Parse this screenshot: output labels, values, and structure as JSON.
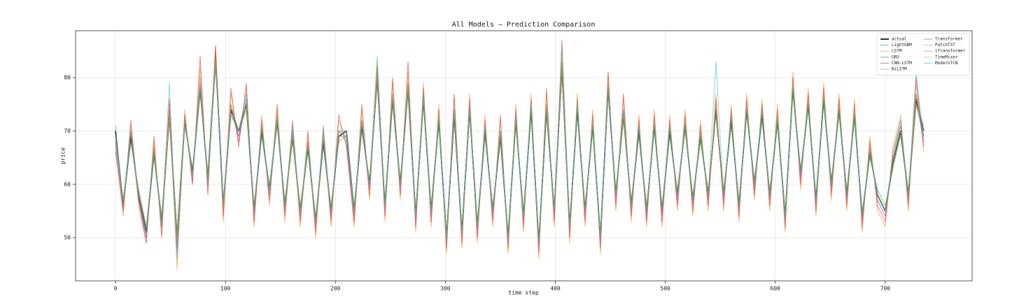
{
  "chart_data": {
    "type": "line",
    "title": "All Models — Prediction Comparison",
    "x_label": "time step",
    "y_label": "price",
    "x": [
      0,
      7,
      14,
      21,
      28,
      35,
      42,
      49,
      56,
      63,
      70,
      77,
      84,
      91,
      98,
      105,
      112,
      119,
      126,
      133,
      140,
      147,
      154,
      161,
      168,
      175,
      182,
      189,
      196,
      203,
      210,
      217,
      224,
      231,
      238,
      245,
      252,
      259,
      266,
      273,
      280,
      287,
      294,
      301,
      308,
      315,
      322,
      329,
      336,
      343,
      350,
      357,
      364,
      371,
      378,
      385,
      392,
      399,
      406,
      413,
      420,
      427,
      434,
      441,
      448,
      455,
      462,
      469,
      476,
      483,
      490,
      497,
      504,
      511,
      518,
      525,
      532,
      539,
      546,
      553,
      560,
      567,
      574,
      581,
      588,
      595,
      602,
      609,
      616,
      623,
      630,
      637,
      644,
      651,
      658,
      665,
      672,
      679,
      686,
      693,
      700,
      707,
      714,
      721,
      728,
      735
    ],
    "xlim": [
      -36.3,
      779
    ],
    "xticks": [
      0,
      100,
      200,
      300,
      400,
      500,
      600,
      700
    ],
    "ylim": [
      41.9,
      88.8
    ],
    "yticks": [
      50,
      60,
      70,
      80
    ],
    "grid": true,
    "legend": "upper right",
    "alpha": 0.6,
    "series": [
      {
        "name": "actual",
        "color": "#000000",
        "values": [
          70,
          56,
          69,
          58,
          51,
          66,
          53,
          73,
          50,
          72,
          62,
          78,
          61,
          84,
          56,
          74,
          70,
          75,
          55,
          70,
          59,
          72,
          56,
          69,
          55,
          67,
          53,
          68,
          55,
          69,
          70,
          55,
          71,
          60,
          80,
          56,
          76,
          60,
          78,
          54,
          76,
          55,
          72,
          50,
          73,
          51,
          74,
          52,
          70,
          55,
          69,
          50,
          72,
          54,
          74,
          49,
          74,
          55,
          82,
          52,
          74,
          55,
          71,
          50,
          78,
          58,
          73,
          56,
          70,
          55,
          71,
          55,
          70,
          58,
          71,
          57,
          69,
          58,
          74,
          58,
          72,
          56,
          74,
          60,
          73,
          58,
          72,
          54,
          78,
          62,
          75,
          57,
          76,
          60,
          74,
          58,
          73,
          54,
          66,
          58,
          55,
          64,
          70,
          58,
          76,
          70
        ]
      },
      {
        "name": "LightGBM",
        "color": "#1f77b4",
        "values": [
          71,
          55,
          70,
          57,
          50,
          67,
          52,
          74,
          49,
          73,
          61,
          79,
          60,
          85,
          55,
          75,
          69,
          76,
          54,
          71,
          58,
          73,
          55,
          70,
          54,
          68,
          52,
          69,
          54,
          70,
          69,
          54,
          72,
          59,
          81,
          55,
          77,
          59,
          79,
          53,
          77,
          54,
          73,
          49,
          74,
          50,
          75,
          51,
          71,
          54,
          70,
          49,
          73,
          53,
          75,
          48,
          75,
          54,
          83,
          51,
          75,
          54,
          72,
          49,
          79,
          57,
          74,
          55,
          71,
          54,
          72,
          54,
          71,
          57,
          72,
          56,
          70,
          57,
          75,
          57,
          73,
          55,
          75,
          59,
          74,
          57,
          73,
          53,
          79,
          61,
          76,
          56,
          77,
          59,
          75,
          57,
          74,
          53,
          67,
          57,
          54,
          65,
          71,
          57,
          77,
          69
        ]
      },
      {
        "name": "LSTM",
        "color": "#ff7f0e",
        "values": [
          68,
          54,
          71,
          56,
          49,
          68,
          51,
          75,
          44,
          74,
          60,
          82,
          59,
          86,
          53,
          77,
          68,
          78,
          52,
          73,
          56,
          74,
          53,
          71,
          52,
          69,
          50,
          70,
          52,
          72,
          68,
          52,
          74,
          57,
          83,
          53,
          79,
          57,
          81,
          51,
          79,
          52,
          75,
          47,
          76,
          48,
          77,
          49,
          73,
          52,
          72,
          47,
          75,
          51,
          77,
          46,
          77,
          52,
          85,
          49,
          77,
          52,
          74,
          47,
          81,
          55,
          76,
          53,
          73,
          52,
          74,
          52,
          73,
          55,
          74,
          54,
          72,
          55,
          77,
          55,
          75,
          53,
          77,
          57,
          76,
          55,
          75,
          51,
          81,
          59,
          78,
          54,
          79,
          57,
          77,
          55,
          76,
          51,
          69,
          55,
          52,
          67,
          73,
          55,
          79,
          66
        ]
      },
      {
        "name": "GRU",
        "color": "#2ca02c",
        "values": [
          69,
          57,
          68,
          59,
          52,
          65,
          54,
          72,
          51,
          71,
          63,
          77,
          62,
          83,
          57,
          73,
          70,
          74,
          56,
          69,
          60,
          71,
          57,
          68,
          56,
          66,
          54,
          67,
          56,
          68,
          69,
          56,
          70,
          61,
          79,
          57,
          75,
          61,
          77,
          55,
          75,
          56,
          71,
          51,
          72,
          52,
          73,
          53,
          69,
          56,
          68,
          51,
          71,
          55,
          73,
          50,
          73,
          56,
          81,
          53,
          73,
          56,
          70,
          51,
          77,
          59,
          72,
          57,
          69,
          56,
          70,
          56,
          69,
          59,
          70,
          58,
          68,
          59,
          73,
          59,
          71,
          57,
          73,
          61,
          72,
          59,
          71,
          55,
          77,
          63,
          74,
          58,
          75,
          61,
          73,
          59,
          72,
          55,
          65,
          59,
          56,
          63,
          69,
          59,
          75,
          71
        ]
      },
      {
        "name": "CNN-LSTM",
        "color": "#d62728",
        "values": [
          66,
          55,
          72,
          57,
          49,
          69,
          50,
          76,
          48,
          73,
          60,
          84,
          58,
          86,
          54,
          78,
          67,
          79,
          53,
          72,
          57,
          75,
          54,
          72,
          53,
          70,
          51,
          71,
          53,
          73,
          67,
          53,
          75,
          58,
          82,
          54,
          80,
          58,
          83,
          52,
          78,
          53,
          74,
          48,
          77,
          49,
          76,
          50,
          72,
          53,
          73,
          48,
          74,
          52,
          76,
          47,
          78,
          53,
          87,
          50,
          76,
          53,
          73,
          48,
          81,
          56,
          77,
          54,
          72,
          53,
          73,
          53,
          72,
          56,
          73,
          55,
          71,
          56,
          76,
          56,
          74,
          54,
          76,
          58,
          75,
          56,
          74,
          52,
          80,
          60,
          77,
          55,
          78,
          58,
          76,
          56,
          75,
          52,
          68,
          56,
          53,
          66,
          72,
          56,
          80,
          67
        ]
      },
      {
        "name": "BiLSTM",
        "color": "#9467bd",
        "values": [
          67,
          56,
          70,
          57,
          50,
          67,
          52,
          74,
          47,
          72,
          61,
          80,
          60,
          84,
          55,
          75,
          68,
          76,
          54,
          71,
          58,
          72,
          55,
          70,
          54,
          68,
          52,
          69,
          54,
          70,
          68,
          54,
          72,
          59,
          80,
          55,
          77,
          59,
          79,
          53,
          77,
          54,
          73,
          49,
          74,
          50,
          75,
          51,
          71,
          54,
          70,
          49,
          73,
          53,
          75,
          48,
          75,
          54,
          82,
          51,
          75,
          54,
          72,
          49,
          78,
          57,
          74,
          55,
          71,
          54,
          72,
          54,
          71,
          57,
          72,
          56,
          70,
          57,
          75,
          57,
          73,
          55,
          75,
          59,
          74,
          57,
          73,
          53,
          79,
          61,
          76,
          56,
          77,
          59,
          75,
          57,
          74,
          53,
          67,
          57,
          54,
          65,
          71,
          57,
          77,
          68
        ]
      },
      {
        "name": "Transformer",
        "color": "#8c564b",
        "values": [
          68,
          57,
          69,
          58,
          52,
          66,
          53,
          72,
          50,
          71,
          63,
          77,
          62,
          82,
          57,
          74,
          69,
          75,
          56,
          70,
          59,
          72,
          56,
          69,
          55,
          67,
          53,
          68,
          55,
          69,
          69,
          55,
          71,
          60,
          79,
          56,
          76,
          60,
          78,
          54,
          76,
          55,
          72,
          50,
          73,
          51,
          74,
          52,
          70,
          55,
          69,
          50,
          72,
          54,
          74,
          49,
          74,
          55,
          81,
          52,
          74,
          55,
          71,
          50,
          78,
          58,
          73,
          56,
          70,
          55,
          71,
          55,
          70,
          58,
          71,
          57,
          69,
          58,
          74,
          58,
          72,
          56,
          74,
          60,
          73,
          58,
          72,
          54,
          78,
          62,
          75,
          57,
          76,
          60,
          74,
          58,
          73,
          54,
          66,
          58,
          55,
          64,
          70,
          58,
          75,
          69
        ]
      },
      {
        "name": "PatchTST",
        "color": "#e377c2",
        "values": [
          69,
          55,
          70,
          57,
          51,
          67,
          52,
          74,
          49,
          73,
          61,
          79,
          60,
          83,
          55,
          75,
          69,
          76,
          54,
          71,
          58,
          73,
          55,
          70,
          54,
          68,
          52,
          69,
          54,
          70,
          70,
          54,
          72,
          59,
          80,
          55,
          77,
          59,
          79,
          53,
          77,
          54,
          73,
          49,
          74,
          50,
          75,
          51,
          71,
          54,
          70,
          49,
          73,
          53,
          75,
          48,
          75,
          54,
          82,
          51,
          75,
          54,
          72,
          49,
          79,
          57,
          74,
          55,
          71,
          54,
          72,
          54,
          71,
          57,
          72,
          56,
          70,
          57,
          75,
          57,
          73,
          55,
          75,
          59,
          74,
          57,
          73,
          53,
          79,
          61,
          76,
          56,
          77,
          59,
          75,
          57,
          74,
          53,
          67,
          57,
          54,
          65,
          71,
          57,
          77,
          67
        ]
      },
      {
        "name": "iTransformer",
        "color": "#7f7f7f",
        "values": [
          70,
          57,
          68,
          59,
          52,
          66,
          54,
          72,
          51,
          72,
          62,
          78,
          61,
          83,
          56,
          74,
          70,
          75,
          55,
          70,
          59,
          72,
          56,
          69,
          55,
          67,
          53,
          68,
          55,
          69,
          70,
          55,
          71,
          60,
          80,
          56,
          76,
          60,
          78,
          54,
          76,
          55,
          72,
          50,
          73,
          51,
          74,
          52,
          70,
          55,
          69,
          50,
          72,
          54,
          74,
          49,
          74,
          55,
          82,
          52,
          74,
          55,
          71,
          50,
          78,
          58,
          73,
          56,
          70,
          55,
          71,
          55,
          70,
          58,
          71,
          57,
          69,
          58,
          74,
          58,
          72,
          56,
          74,
          60,
          73,
          58,
          72,
          54,
          78,
          62,
          75,
          57,
          76,
          60,
          74,
          58,
          73,
          54,
          66,
          58,
          55,
          64,
          70,
          58,
          76,
          70
        ]
      },
      {
        "name": "TimeMixer",
        "color": "#bcbd22",
        "values": [
          69,
          56,
          70,
          58,
          52,
          67,
          53,
          73,
          50,
          72,
          62,
          79,
          61,
          84,
          56,
          75,
          70,
          75,
          55,
          71,
          59,
          73,
          56,
          69,
          55,
          68,
          53,
          69,
          55,
          70,
          70,
          55,
          72,
          60,
          81,
          56,
          77,
          60,
          79,
          54,
          76,
          55,
          73,
          50,
          74,
          51,
          74,
          52,
          71,
          55,
          70,
          50,
          72,
          54,
          75,
          49,
          75,
          55,
          83,
          52,
          75,
          55,
          72,
          50,
          79,
          58,
          73,
          56,
          71,
          55,
          72,
          55,
          71,
          58,
          72,
          57,
          70,
          58,
          75,
          58,
          73,
          56,
          75,
          60,
          74,
          58,
          73,
          54,
          79,
          62,
          76,
          57,
          77,
          60,
          75,
          58,
          74,
          54,
          67,
          58,
          55,
          65,
          71,
          58,
          77,
          70
        ]
      },
      {
        "name": "ModernTCN",
        "color": "#17becf",
        "values": [
          69,
          57,
          70,
          58,
          51,
          66,
          52,
          79,
          46,
          71,
          62,
          78,
          60,
          82,
          57,
          73,
          70,
          77,
          55,
          71,
          59,
          72,
          56,
          71,
          55,
          67,
          53,
          70,
          55,
          70,
          70,
          55,
          72,
          60,
          84,
          56,
          76,
          60,
          78,
          54,
          77,
          55,
          72,
          50,
          74,
          51,
          74,
          52,
          71,
          55,
          70,
          50,
          73,
          54,
          75,
          49,
          74,
          55,
          86,
          52,
          75,
          55,
          71,
          50,
          78,
          58,
          74,
          56,
          71,
          55,
          71,
          55,
          71,
          58,
          71,
          57,
          69,
          58,
          83,
          58,
          73,
          56,
          74,
          60,
          74,
          58,
          72,
          54,
          78,
          62,
          75,
          57,
          76,
          60,
          74,
          58,
          73,
          54,
          66,
          58,
          55,
          65,
          72,
          58,
          81,
          68
        ]
      }
    ]
  }
}
